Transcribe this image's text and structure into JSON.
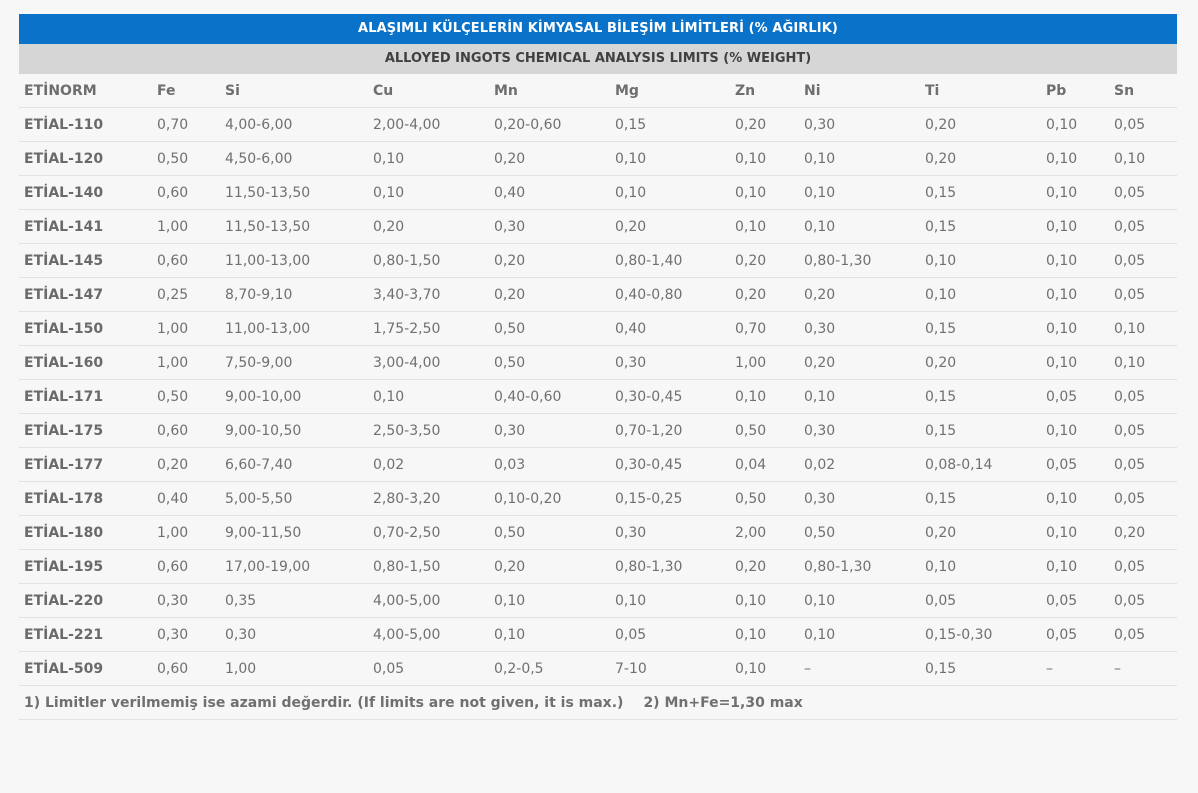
{
  "table": {
    "title": "ALAŞIMLI KÜLÇELERİN KİMYASAL BİLEŞİM LİMİTLERİ (% AĞIRLIK)",
    "subtitle": "ALLOYED INGOTS CHEMICAL ANALYSIS LIMITS (% WEIGHT)",
    "columns": [
      "ETİNORM",
      "Fe",
      "Si",
      "Cu",
      "Mn",
      "Mg",
      "Zn",
      "Ni",
      "Ti",
      "Pb",
      "Sn"
    ],
    "rows": [
      [
        "ETİAL-110",
        "0,70",
        "4,00-6,00",
        "2,00-4,00",
        "0,20-0,60",
        "0,15",
        "0,20",
        "0,30",
        "0,20",
        "0,10",
        "0,05"
      ],
      [
        "ETİAL-120",
        "0,50",
        "4,50-6,00",
        "0,10",
        "0,20",
        "0,10",
        "0,10",
        "0,10",
        "0,20",
        "0,10",
        "0,10"
      ],
      [
        "ETİAL-140",
        "0,60",
        "11,50-13,50",
        "0,10",
        "0,40",
        "0,10",
        "0,10",
        "0,10",
        "0,15",
        "0,10",
        "0,05"
      ],
      [
        "ETİAL-141",
        "1,00",
        "11,50-13,50",
        "0,20",
        "0,30",
        "0,20",
        "0,10",
        "0,10",
        "0,15",
        "0,10",
        "0,05"
      ],
      [
        "ETİAL-145",
        "0,60",
        "11,00-13,00",
        "0,80-1,50",
        "0,20",
        "0,80-1,40",
        "0,20",
        "0,80-1,30",
        "0,10",
        "0,10",
        "0,05"
      ],
      [
        "ETİAL-147",
        "0,25",
        "8,70-9,10",
        "3,40-3,70",
        "0,20",
        "0,40-0,80",
        "0,20",
        "0,20",
        "0,10",
        "0,10",
        "0,05"
      ],
      [
        "ETİAL-150",
        "1,00",
        "11,00-13,00",
        "1,75-2,50",
        "0,50",
        "0,40",
        "0,70",
        "0,30",
        "0,15",
        "0,10",
        "0,10"
      ],
      [
        "ETİAL-160",
        "1,00",
        "7,50-9,00",
        "3,00-4,00",
        "0,50",
        "0,30",
        "1,00",
        "0,20",
        "0,20",
        "0,10",
        "0,10"
      ],
      [
        "ETİAL-171",
        "0,50",
        "9,00-10,00",
        "0,10",
        "0,40-0,60",
        "0,30-0,45",
        "0,10",
        "0,10",
        "0,15",
        "0,05",
        "0,05"
      ],
      [
        "ETİAL-175",
        "0,60",
        "9,00-10,50",
        "2,50-3,50",
        "0,30",
        "0,70-1,20",
        "0,50",
        "0,30",
        "0,15",
        "0,10",
        "0,05"
      ],
      [
        "ETİAL-177",
        "0,20",
        "6,60-7,40",
        "0,02",
        "0,03",
        "0,30-0,45",
        "0,04",
        "0,02",
        "0,08-0,14",
        "0,05",
        "0,05"
      ],
      [
        "ETİAL-178",
        "0,40",
        "5,00-5,50",
        "2,80-3,20",
        "0,10-0,20",
        "0,15-0,25",
        "0,50",
        "0,30",
        "0,15",
        "0,10",
        "0,05"
      ],
      [
        "ETİAL-180",
        "1,00",
        "9,00-11,50",
        "0,70-2,50",
        "0,50",
        "0,30",
        "2,00",
        "0,50",
        "0,20",
        "0,10",
        "0,20"
      ],
      [
        "ETİAL-195",
        "0,60",
        "17,00-19,00",
        "0,80-1,50",
        "0,20",
        "0,80-1,30",
        "0,20",
        "0,80-1,30",
        "0,10",
        "0,10",
        "0,05"
      ],
      [
        "ETİAL-220",
        "0,30",
        "0,35",
        "4,00-5,00",
        "0,10",
        "0,10",
        "0,10",
        "0,10",
        "0,05",
        "0,05",
        "0,05"
      ],
      [
        "ETİAL-221",
        "0,30",
        "0,30",
        "4,00-5,00",
        "0,10",
        "0,05",
        "0,10",
        "0,10",
        "0,15-0,30",
        "0,05",
        "0,05"
      ],
      [
        "ETİAL-509",
        "0,60",
        "1,00",
        "0,05",
        "0,2-0,5",
        "7-10",
        "0,10",
        "–",
        "0,15",
        "–",
        "–"
      ]
    ],
    "footnotes": [
      "1) Limitler verilmemiş ise azami değerdir. (If limits are not given, it is max.)",
      "2) Mn+Fe=1,30 max"
    ]
  }
}
